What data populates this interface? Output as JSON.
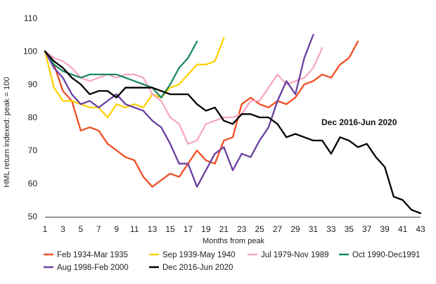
{
  "chart_data": {
    "type": "line",
    "title": "",
    "xlabel": "Months from peak",
    "ylabel": "HML return indexed: peak = 100",
    "xlim": [
      1,
      43
    ],
    "ylim": [
      50,
      110
    ],
    "yticks": [
      50,
      60,
      70,
      80,
      90,
      100,
      110
    ],
    "xticks": [
      1,
      3,
      5,
      7,
      9,
      11,
      13,
      15,
      17,
      19,
      21,
      23,
      25,
      27,
      29,
      31,
      33,
      35,
      37,
      39,
      41,
      43
    ],
    "grid": false,
    "legend_position": "bottom",
    "annotation": "Dec 2016-Jun 2020",
    "series": [
      {
        "name": "Feb 1934-Mar 1935",
        "color": "#f04e23",
        "values": [
          100,
          96,
          88,
          85,
          76,
          77,
          76,
          72,
          70,
          68,
          67,
          62,
          59,
          61,
          63,
          62,
          66,
          70,
          67,
          66,
          73,
          74,
          84,
          86,
          84,
          83,
          85,
          84,
          86,
          90,
          91,
          93,
          92,
          96,
          98,
          103
        ]
      },
      {
        "name": "Sep 1939-May 1940",
        "color": "#ffd100",
        "values": [
          100,
          89,
          85,
          85,
          84,
          83,
          83,
          80,
          84,
          83,
          84,
          83,
          87,
          86,
          89,
          90,
          93,
          96,
          96,
          97,
          104
        ]
      },
      {
        "name": "Jul 1979-Nov 1989",
        "color": "#f7a8c0",
        "values": [
          100,
          98,
          97,
          95,
          92,
          91,
          92,
          93,
          92,
          93,
          93,
          92,
          87,
          85,
          80,
          78,
          72,
          73,
          78,
          79,
          80,
          80,
          81,
          85,
          85,
          89,
          93,
          90,
          91,
          92,
          95,
          101
        ]
      },
      {
        "name": "Oct 1990-Dec1991",
        "color": "#1a8a5e",
        "values": [
          100,
          96,
          94,
          93,
          92,
          93,
          93,
          93,
          93,
          92,
          91,
          90,
          89,
          86,
          90,
          95,
          98,
          103
        ]
      },
      {
        "name": "Aug 1998-Feb 2000",
        "color": "#6a3fa0",
        "values": [
          100,
          95,
          92,
          87,
          84,
          85,
          83,
          85,
          87,
          84,
          83,
          82,
          79,
          77,
          72,
          66,
          66,
          59,
          64,
          69,
          71,
          64,
          69,
          68,
          73,
          77,
          85,
          91,
          87,
          98,
          105
        ]
      },
      {
        "name": "Dec 2016-Jun 2020",
        "color": "#000000",
        "values": [
          100,
          97,
          95,
          92,
          90,
          87,
          88,
          88,
          86,
          89,
          89,
          89,
          89,
          88,
          87,
          87,
          87,
          84,
          82,
          83,
          79,
          78,
          81,
          81,
          80,
          80,
          78,
          74,
          75,
          74,
          73,
          73,
          69,
          74,
          73,
          71,
          72,
          68,
          65,
          56,
          55,
          52,
          51
        ]
      }
    ]
  }
}
